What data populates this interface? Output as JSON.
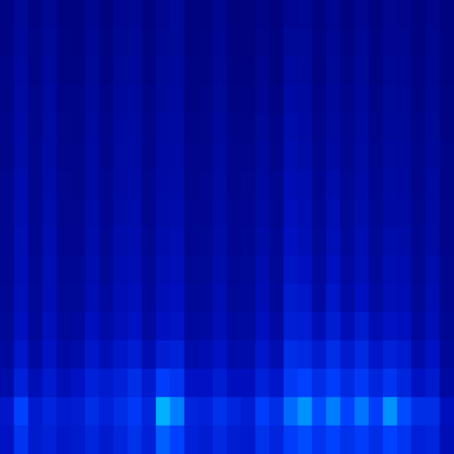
{
  "chart_data": {
    "type": "heatmap",
    "tick_labels": false,
    "grid": false,
    "zlim": [
      0,
      1
    ],
    "cells": [
      [
        0.06,
        0.12,
        0.06,
        0.11,
        0.05,
        0.05,
        0.1,
        0.05,
        0.1,
        0.11,
        0.05,
        0.1,
        0.12,
        0.05,
        0.05,
        0.09,
        0.04,
        0.04,
        0.07,
        0.04,
        0.1,
        0.11,
        0.05,
        0.1,
        0.05,
        0.1,
        0.05,
        0.09,
        0.08,
        0.05,
        0.08,
        0.05
      ],
      [
        0.06,
        0.13,
        0.07,
        0.12,
        0.06,
        0.05,
        0.11,
        0.06,
        0.11,
        0.12,
        0.06,
        0.11,
        0.12,
        0.05,
        0.06,
        0.1,
        0.04,
        0.04,
        0.08,
        0.05,
        0.12,
        0.12,
        0.06,
        0.11,
        0.06,
        0.11,
        0.06,
        0.1,
        0.09,
        0.05,
        0.09,
        0.05
      ],
      [
        0.07,
        0.14,
        0.07,
        0.13,
        0.06,
        0.06,
        0.12,
        0.06,
        0.12,
        0.13,
        0.06,
        0.12,
        0.13,
        0.06,
        0.06,
        0.11,
        0.05,
        0.05,
        0.09,
        0.05,
        0.14,
        0.13,
        0.06,
        0.12,
        0.07,
        0.12,
        0.06,
        0.11,
        0.1,
        0.06,
        0.1,
        0.05
      ],
      [
        0.07,
        0.15,
        0.08,
        0.14,
        0.07,
        0.07,
        0.13,
        0.07,
        0.13,
        0.14,
        0.07,
        0.13,
        0.14,
        0.06,
        0.07,
        0.12,
        0.06,
        0.06,
        0.1,
        0.06,
        0.16,
        0.14,
        0.07,
        0.13,
        0.08,
        0.13,
        0.07,
        0.12,
        0.11,
        0.06,
        0.11,
        0.06
      ],
      [
        0.08,
        0.16,
        0.08,
        0.15,
        0.08,
        0.07,
        0.14,
        0.08,
        0.14,
        0.15,
        0.08,
        0.14,
        0.15,
        0.07,
        0.08,
        0.13,
        0.07,
        0.07,
        0.12,
        0.07,
        0.18,
        0.16,
        0.08,
        0.14,
        0.09,
        0.14,
        0.08,
        0.13,
        0.12,
        0.07,
        0.12,
        0.06
      ],
      [
        0.08,
        0.17,
        0.09,
        0.16,
        0.08,
        0.08,
        0.15,
        0.08,
        0.15,
        0.16,
        0.08,
        0.15,
        0.16,
        0.08,
        0.08,
        0.14,
        0.08,
        0.08,
        0.13,
        0.08,
        0.19,
        0.17,
        0.09,
        0.16,
        0.1,
        0.15,
        0.09,
        0.14,
        0.13,
        0.08,
        0.13,
        0.07
      ],
      [
        0.09,
        0.18,
        0.09,
        0.17,
        0.09,
        0.08,
        0.16,
        0.09,
        0.16,
        0.17,
        0.09,
        0.16,
        0.17,
        0.08,
        0.09,
        0.15,
        0.08,
        0.09,
        0.14,
        0.09,
        0.21,
        0.19,
        0.1,
        0.18,
        0.11,
        0.17,
        0.1,
        0.15,
        0.14,
        0.08,
        0.14,
        0.07
      ],
      [
        0.09,
        0.19,
        0.1,
        0.18,
        0.09,
        0.09,
        0.17,
        0.1,
        0.17,
        0.18,
        0.1,
        0.17,
        0.18,
        0.09,
        0.1,
        0.16,
        0.09,
        0.1,
        0.15,
        0.1,
        0.23,
        0.2,
        0.11,
        0.2,
        0.12,
        0.18,
        0.11,
        0.16,
        0.15,
        0.09,
        0.15,
        0.08
      ],
      [
        0.1,
        0.2,
        0.1,
        0.19,
        0.1,
        0.1,
        0.18,
        0.11,
        0.18,
        0.19,
        0.11,
        0.18,
        0.2,
        0.1,
        0.11,
        0.17,
        0.1,
        0.11,
        0.17,
        0.11,
        0.25,
        0.22,
        0.12,
        0.22,
        0.13,
        0.2,
        0.12,
        0.18,
        0.17,
        0.1,
        0.16,
        0.08
      ],
      [
        0.1,
        0.21,
        0.11,
        0.2,
        0.11,
        0.11,
        0.19,
        0.12,
        0.19,
        0.21,
        0.12,
        0.2,
        0.22,
        0.11,
        0.12,
        0.18,
        0.11,
        0.12,
        0.19,
        0.12,
        0.27,
        0.25,
        0.14,
        0.25,
        0.15,
        0.22,
        0.13,
        0.2,
        0.19,
        0.11,
        0.18,
        0.09
      ],
      [
        0.11,
        0.22,
        0.12,
        0.21,
        0.12,
        0.12,
        0.21,
        0.14,
        0.21,
        0.23,
        0.13,
        0.22,
        0.24,
        0.12,
        0.13,
        0.2,
        0.12,
        0.13,
        0.21,
        0.13,
        0.3,
        0.28,
        0.16,
        0.28,
        0.17,
        0.25,
        0.15,
        0.22,
        0.21,
        0.12,
        0.2,
        0.1
      ],
      [
        0.12,
        0.24,
        0.13,
        0.23,
        0.13,
        0.14,
        0.24,
        0.17,
        0.23,
        0.26,
        0.15,
        0.25,
        0.27,
        0.14,
        0.15,
        0.22,
        0.14,
        0.15,
        0.24,
        0.16,
        0.33,
        0.32,
        0.22,
        0.32,
        0.22,
        0.3,
        0.2,
        0.26,
        0.24,
        0.14,
        0.22,
        0.11
      ],
      [
        0.14,
        0.28,
        0.16,
        0.26,
        0.16,
        0.18,
        0.28,
        0.22,
        0.28,
        0.32,
        0.2,
        0.32,
        0.34,
        0.18,
        0.2,
        0.26,
        0.18,
        0.18,
        0.28,
        0.2,
        0.4,
        0.38,
        0.3,
        0.4,
        0.3,
        0.38,
        0.28,
        0.34,
        0.3,
        0.18,
        0.26,
        0.13
      ],
      [
        0.18,
        0.34,
        0.22,
        0.3,
        0.22,
        0.26,
        0.34,
        0.3,
        0.34,
        0.4,
        0.3,
        0.48,
        0.44,
        0.26,
        0.26,
        0.32,
        0.24,
        0.24,
        0.34,
        0.28,
        0.46,
        0.5,
        0.4,
        0.48,
        0.38,
        0.46,
        0.36,
        0.44,
        0.36,
        0.26,
        0.3,
        0.16
      ],
      [
        0.28,
        0.5,
        0.3,
        0.36,
        0.3,
        0.32,
        0.4,
        0.34,
        0.4,
        0.46,
        0.36,
        0.72,
        0.62,
        0.36,
        0.34,
        0.42,
        0.36,
        0.32,
        0.48,
        0.4,
        0.58,
        0.66,
        0.52,
        0.62,
        0.5,
        0.6,
        0.48,
        0.66,
        0.52,
        0.4,
        0.4,
        0.24
      ],
      [
        0.26,
        0.44,
        0.3,
        0.34,
        0.28,
        0.3,
        0.36,
        0.3,
        0.36,
        0.42,
        0.34,
        0.56,
        0.5,
        0.34,
        0.32,
        0.38,
        0.32,
        0.3,
        0.42,
        0.36,
        0.48,
        0.52,
        0.44,
        0.5,
        0.42,
        0.48,
        0.4,
        0.5,
        0.44,
        0.34,
        0.36,
        0.22
      ]
    ]
  }
}
